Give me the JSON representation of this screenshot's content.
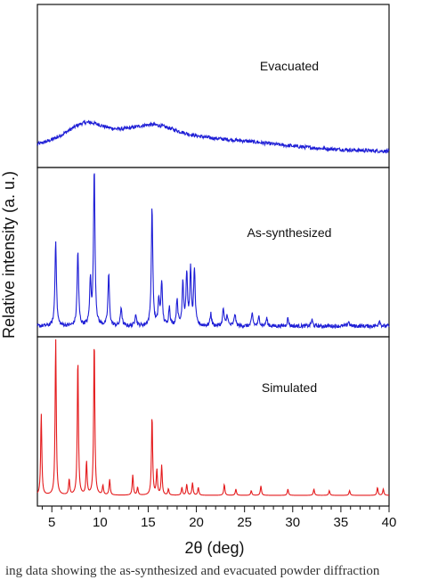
{
  "chart_data": {
    "type": "line",
    "xlabel": "2θ (deg)",
    "ylabel": "Relative intensity (a. u.)",
    "xlim": [
      3.5,
      40
    ],
    "xticks": [
      5,
      10,
      15,
      20,
      25,
      30,
      35,
      40
    ],
    "panels": [
      {
        "name": "Evacuated",
        "color": "#1f1fd6",
        "background": [
          {
            "x": 3.5,
            "y": 0.02
          },
          {
            "x": 40,
            "y": 0.02
          }
        ],
        "peaks": [
          {
            "x": 8.5,
            "y": 0.16,
            "w": 3.0
          },
          {
            "x": 15.5,
            "y": 0.14,
            "w": 4.0
          },
          {
            "x": 24.0,
            "y": 0.06,
            "w": 8.0
          }
        ],
        "noise": 0.012
      },
      {
        "name": "As-synthesized",
        "color": "#1f1fd6",
        "noise": 0.012,
        "peaks": [
          {
            "x": 5.4,
            "y": 0.55,
            "w": 0.09
          },
          {
            "x": 7.7,
            "y": 0.48,
            "w": 0.09
          },
          {
            "x": 9.0,
            "y": 0.28,
            "w": 0.09
          },
          {
            "x": 9.4,
            "y": 1.0,
            "w": 0.09
          },
          {
            "x": 10.9,
            "y": 0.33,
            "w": 0.09
          },
          {
            "x": 12.2,
            "y": 0.12,
            "w": 0.09
          },
          {
            "x": 13.7,
            "y": 0.08,
            "w": 0.09
          },
          {
            "x": 15.4,
            "y": 0.76,
            "w": 0.09
          },
          {
            "x": 16.1,
            "y": 0.16,
            "w": 0.09
          },
          {
            "x": 16.4,
            "y": 0.28,
            "w": 0.09
          },
          {
            "x": 17.2,
            "y": 0.12,
            "w": 0.09
          },
          {
            "x": 18.0,
            "y": 0.17,
            "w": 0.09
          },
          {
            "x": 18.6,
            "y": 0.28,
            "w": 0.09
          },
          {
            "x": 19.0,
            "y": 0.33,
            "w": 0.09
          },
          {
            "x": 19.4,
            "y": 0.35,
            "w": 0.09
          },
          {
            "x": 19.8,
            "y": 0.36,
            "w": 0.09
          },
          {
            "x": 21.5,
            "y": 0.08,
            "w": 0.09
          },
          {
            "x": 22.8,
            "y": 0.11,
            "w": 0.09
          },
          {
            "x": 23.2,
            "y": 0.07,
            "w": 0.09
          },
          {
            "x": 24.0,
            "y": 0.08,
            "w": 0.09
          },
          {
            "x": 25.8,
            "y": 0.08,
            "w": 0.09
          },
          {
            "x": 26.5,
            "y": 0.06,
            "w": 0.09
          },
          {
            "x": 27.3,
            "y": 0.05,
            "w": 0.09
          },
          {
            "x": 29.5,
            "y": 0.05,
            "w": 0.09
          },
          {
            "x": 32.0,
            "y": 0.04,
            "w": 0.09
          },
          {
            "x": 35.8,
            "y": 0.03,
            "w": 0.09
          },
          {
            "x": 39.0,
            "y": 0.04,
            "w": 0.09
          }
        ]
      },
      {
        "name": "Simulated",
        "color": "#e41a1c",
        "noise": 0,
        "peaks": [
          {
            "x": 3.9,
            "y": 0.52,
            "w": 0.07
          },
          {
            "x": 5.4,
            "y": 1.0,
            "w": 0.07
          },
          {
            "x": 6.8,
            "y": 0.1,
            "w": 0.07
          },
          {
            "x": 7.7,
            "y": 0.88,
            "w": 0.07
          },
          {
            "x": 8.6,
            "y": 0.21,
            "w": 0.07
          },
          {
            "x": 9.4,
            "y": 1.0,
            "w": 0.07
          },
          {
            "x": 10.3,
            "y": 0.06,
            "w": 0.07
          },
          {
            "x": 11.0,
            "y": 0.1,
            "w": 0.07
          },
          {
            "x": 13.4,
            "y": 0.13,
            "w": 0.07
          },
          {
            "x": 13.9,
            "y": 0.05,
            "w": 0.07
          },
          {
            "x": 15.4,
            "y": 0.51,
            "w": 0.07
          },
          {
            "x": 15.9,
            "y": 0.16,
            "w": 0.07
          },
          {
            "x": 16.4,
            "y": 0.19,
            "w": 0.07
          },
          {
            "x": 17.1,
            "y": 0.04,
            "w": 0.07
          },
          {
            "x": 18.5,
            "y": 0.05,
            "w": 0.07
          },
          {
            "x": 19.0,
            "y": 0.07,
            "w": 0.07
          },
          {
            "x": 19.6,
            "y": 0.08,
            "w": 0.07
          },
          {
            "x": 20.2,
            "y": 0.05,
            "w": 0.07
          },
          {
            "x": 22.9,
            "y": 0.07,
            "w": 0.07
          },
          {
            "x": 24.1,
            "y": 0.04,
            "w": 0.07
          },
          {
            "x": 25.7,
            "y": 0.03,
            "w": 0.07
          },
          {
            "x": 26.7,
            "y": 0.06,
            "w": 0.07
          },
          {
            "x": 29.5,
            "y": 0.04,
            "w": 0.07
          },
          {
            "x": 32.2,
            "y": 0.04,
            "w": 0.07
          },
          {
            "x": 33.8,
            "y": 0.03,
            "w": 0.07
          },
          {
            "x": 35.9,
            "y": 0.03,
            "w": 0.07
          },
          {
            "x": 38.8,
            "y": 0.05,
            "w": 0.07
          },
          {
            "x": 39.4,
            "y": 0.04,
            "w": 0.07
          }
        ]
      }
    ]
  },
  "caption": "ing data showing the as-synthesized and evacuated powder diffraction"
}
